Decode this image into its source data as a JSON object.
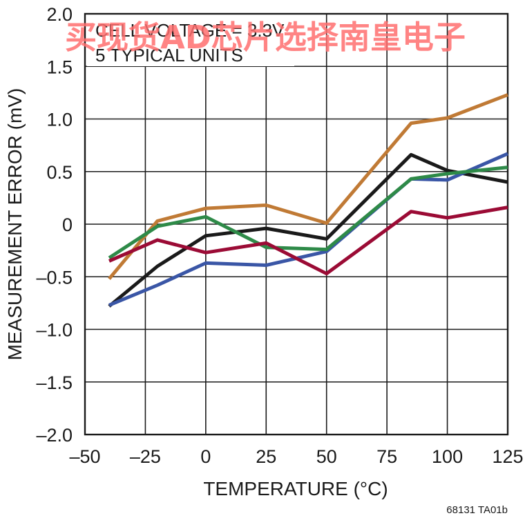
{
  "chart_data": {
    "type": "line",
    "title": "",
    "annotations": [
      "CELL VOLTAGE = 3.3V",
      "5 TYPICAL UNITS"
    ],
    "xlabel": "TEMPERATURE (°C)",
    "ylabel": "MEASUREMENT ERROR (mV)",
    "xlim": [
      -50,
      125
    ],
    "ylim": [
      -2.0,
      2.0
    ],
    "x_ticks": [
      -50,
      -25,
      0,
      25,
      50,
      75,
      100,
      125
    ],
    "x_tick_labels": [
      "–50",
      "–25",
      "0",
      "25",
      "50",
      "75",
      "100",
      "125"
    ],
    "y_ticks": [
      2.0,
      1.5,
      1.0,
      0.5,
      0,
      -0.5,
      -1.0,
      -1.5,
      -2.0
    ],
    "y_tick_labels": [
      "2.0",
      "1.5",
      "1.0",
      "0.5",
      "0",
      "–0.5",
      "–1.0",
      "–1.5",
      "–2.0"
    ],
    "grid": true,
    "legend": "none",
    "x": [
      -40,
      -20,
      0,
      25,
      50,
      85,
      100,
      125
    ],
    "series": [
      {
        "color": "#c07a35",
        "values": [
          -0.52,
          0.03,
          0.15,
          0.18,
          0.01,
          0.96,
          1.01,
          1.23
        ]
      },
      {
        "color": "#1a1a1a",
        "values": [
          -0.78,
          -0.4,
          -0.11,
          -0.04,
          -0.14,
          0.66,
          0.51,
          0.4
        ]
      },
      {
        "color": "#3a56a6",
        "values": [
          -0.77,
          -0.58,
          -0.37,
          -0.39,
          -0.26,
          0.43,
          0.42,
          0.67
        ]
      },
      {
        "color": "#2e8a48",
        "values": [
          -0.32,
          -0.02,
          0.07,
          -0.22,
          -0.24,
          0.43,
          0.48,
          0.54
        ]
      },
      {
        "color": "#9b0b35",
        "values": [
          -0.35,
          -0.15,
          -0.27,
          -0.18,
          -0.47,
          0.12,
          0.06,
          0.16
        ]
      }
    ]
  },
  "figure_id": "68131 TA01b",
  "watermark": "买现货AD芯片选择南皇电子"
}
